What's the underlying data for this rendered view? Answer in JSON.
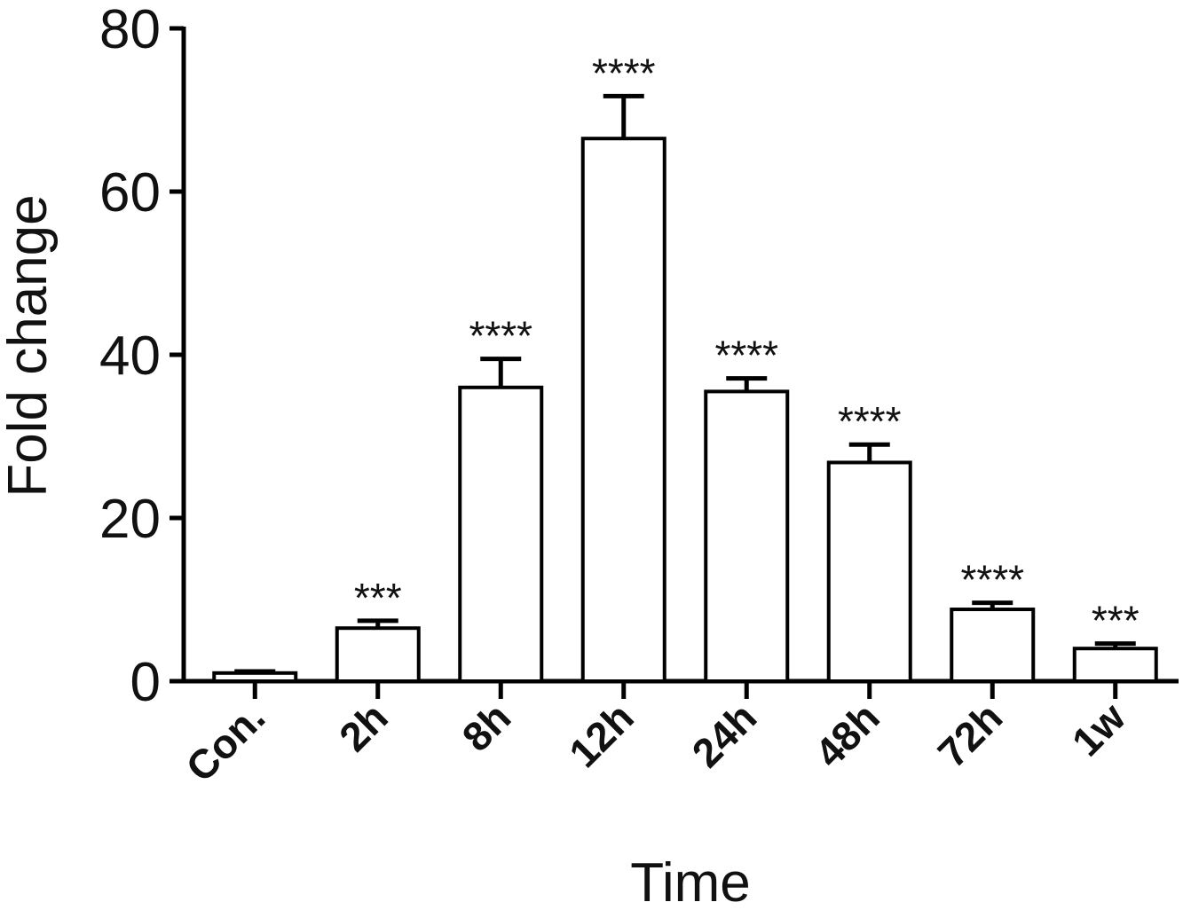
{
  "chart_data": {
    "type": "bar",
    "title": "",
    "xlabel": "Time",
    "ylabel": "Fold change",
    "ylim": [
      0,
      80
    ],
    "yticks": [
      0,
      20,
      40,
      60,
      80
    ],
    "grid": false,
    "categories": [
      "Con.",
      "2h",
      "8h",
      "12h",
      "24h",
      "48h",
      "72h",
      "1w"
    ],
    "values": [
      1,
      6.5,
      36,
      66.5,
      35.5,
      26.8,
      8.8,
      4
    ],
    "error": [
      0.2,
      0.9,
      3.5,
      5.2,
      1.6,
      2.2,
      0.8,
      0.6
    ],
    "significance": [
      "",
      "***",
      "****",
      "****",
      "****",
      "****",
      "****",
      "***"
    ],
    "bar_fill": "#ffffff",
    "bar_stroke": "#000000"
  }
}
